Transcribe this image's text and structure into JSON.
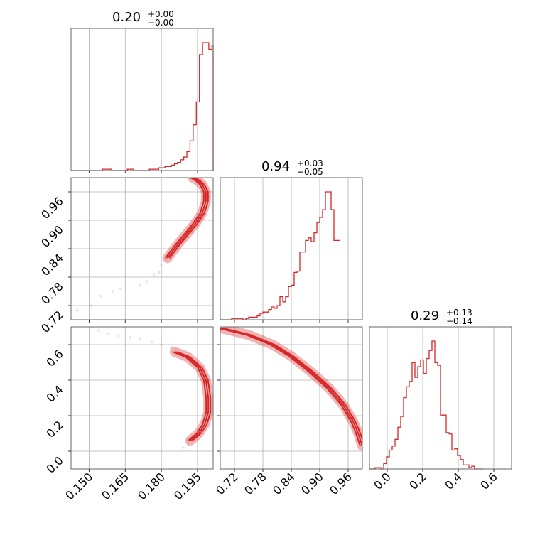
{
  "chart_data": {
    "type": "corner",
    "params": [
      {
        "title": {
          "median": "0.20",
          "plus": "+0.00",
          "minus": "−0.00"
        },
        "lim": [
          0.1425,
          0.2015
        ],
        "ticks": [
          "0.150",
          "0.165",
          "0.180",
          "0.195"
        ],
        "hist": {
          "edges_start": 0.1425,
          "bin_width": 0.0013,
          "counts": [
            0,
            0,
            0,
            0,
            0,
            0,
            0,
            0,
            0,
            0,
            1,
            1,
            1,
            0,
            0,
            0,
            0,
            0,
            1,
            1,
            0,
            0,
            0,
            0,
            0,
            1,
            1,
            1,
            2,
            2,
            3,
            3,
            4,
            5,
            6,
            8,
            10,
            14,
            22,
            34,
            51,
            86,
            95,
            95,
            90,
            93,
            78,
            20,
            0,
            0
          ]
        }
      },
      {
        "title": {
          "median": "0.94",
          "plus": "+0.03",
          "minus": "−0.05"
        },
        "lim": [
          0.69,
          0.99
        ],
        "ticks": [
          "0.72",
          "0.78",
          "0.84",
          "0.90",
          "0.96"
        ],
        "hist": {
          "edges_start": 0.69,
          "bin_width": 0.006,
          "counts": [
            0,
            0,
            0,
            0,
            1,
            1,
            1,
            1,
            0,
            1,
            2,
            2,
            2,
            3,
            5,
            6,
            6,
            8,
            10,
            9,
            11,
            18,
            14,
            18,
            26,
            27,
            37,
            38,
            53,
            53,
            62,
            64,
            61,
            68,
            76,
            80,
            86,
            100,
            100,
            86,
            62,
            62
          ]
        }
      },
      {
        "title": {
          "median": "0.29",
          "plus": "+0.13",
          "minus": "−0.14"
        },
        "lim": [
          -0.1,
          0.7
        ],
        "ticks": [
          "0.0",
          "0.2",
          "0.4",
          "0.6"
        ],
        "hist": {
          "edges_start": -0.1,
          "bin_width": 0.016,
          "counts": [
            0,
            0,
            1,
            1,
            0,
            4,
            9,
            14,
            17,
            22,
            31,
            39,
            53,
            61,
            65,
            79,
            68,
            76,
            81,
            71,
            82,
            88,
            95,
            79,
            77,
            40,
            40,
            27,
            26,
            14,
            15,
            10,
            7,
            3,
            3,
            1,
            2,
            0,
            0,
            0
          ]
        }
      }
    ],
    "pairs": [
      {
        "x_param": 0,
        "y_param": 1,
        "samples": [
          [
            0.145,
            0.71
          ],
          [
            0.151,
            0.72
          ],
          [
            0.155,
            0.74
          ],
          [
            0.16,
            0.75
          ],
          [
            0.163,
            0.755
          ],
          [
            0.171,
            0.763
          ],
          [
            0.174,
            0.771
          ],
          [
            0.177,
            0.786
          ],
          [
            0.179,
            0.79
          ],
          [
            0.18,
            0.804
          ],
          [
            0.182,
            0.818
          ],
          [
            0.183,
            0.825
          ],
          [
            0.184,
            0.83
          ],
          [
            0.185,
            0.838
          ],
          [
            0.186,
            0.842
          ],
          [
            0.187,
            0.847
          ],
          [
            0.188,
            0.852
          ],
          [
            0.189,
            0.856
          ],
          [
            0.19,
            0.862
          ],
          [
            0.192,
            0.873
          ],
          [
            0.193,
            0.874
          ],
          [
            0.194,
            0.885
          ],
          [
            0.195,
            0.888
          ],
          [
            0.196,
            0.897
          ],
          [
            0.197,
            0.905
          ],
          [
            0.198,
            0.915
          ],
          [
            0.199,
            0.93
          ],
          [
            0.2,
            0.95
          ],
          [
            0.199,
            0.967
          ],
          [
            0.197,
            0.978
          ],
          [
            0.196,
            0.985
          ],
          [
            0.194,
            0.989
          ],
          [
            0.192,
            0.99
          ],
          [
            0.19,
            0.99
          ]
        ],
        "curve": [
          [
            0.1825,
            0.82
          ],
          [
            0.187,
            0.85
          ],
          [
            0.191,
            0.874
          ],
          [
            0.194,
            0.893
          ],
          [
            0.197,
            0.915
          ],
          [
            0.1985,
            0.94
          ],
          [
            0.1985,
            0.96
          ],
          [
            0.197,
            0.975
          ],
          [
            0.195,
            0.984
          ],
          [
            0.193,
            0.99
          ]
        ]
      },
      {
        "x_param": 0,
        "y_param": 2,
        "samples": [
          [
            0.151,
            0.7
          ],
          [
            0.154,
            0.68
          ],
          [
            0.158,
            0.66
          ],
          [
            0.162,
            0.65
          ],
          [
            0.167,
            0.64
          ],
          [
            0.171,
            0.63
          ],
          [
            0.176,
            0.615
          ],
          [
            0.18,
            0.6
          ],
          [
            0.184,
            0.585
          ],
          [
            0.186,
            0.57
          ],
          [
            0.188,
            0.555
          ],
          [
            0.19,
            0.54
          ],
          [
            0.192,
            0.52
          ],
          [
            0.194,
            0.5
          ],
          [
            0.196,
            0.47
          ],
          [
            0.197,
            0.44
          ],
          [
            0.198,
            0.41
          ],
          [
            0.199,
            0.38
          ],
          [
            0.2,
            0.34
          ],
          [
            0.2,
            0.3
          ],
          [
            0.2,
            0.26
          ],
          [
            0.199,
            0.22
          ],
          [
            0.199,
            0.18
          ],
          [
            0.198,
            0.15
          ],
          [
            0.196,
            0.12
          ],
          [
            0.195,
            0.09
          ],
          [
            0.193,
            0.06
          ],
          [
            0.191,
            0.04
          ],
          [
            0.189,
            0.02
          ]
        ],
        "curve": [
          [
            0.1855,
            0.56
          ],
          [
            0.191,
            0.53
          ],
          [
            0.196,
            0.47
          ],
          [
            0.1985,
            0.4
          ],
          [
            0.1995,
            0.3
          ],
          [
            0.1995,
            0.22
          ],
          [
            0.198,
            0.15
          ],
          [
            0.1955,
            0.1
          ],
          [
            0.192,
            0.06
          ]
        ]
      },
      {
        "x_param": 1,
        "y_param": 2,
        "samples": [
          [
            0.7,
            0.7
          ],
          [
            0.72,
            0.68
          ],
          [
            0.74,
            0.66
          ],
          [
            0.76,
            0.65
          ],
          [
            0.78,
            0.62
          ],
          [
            0.8,
            0.6
          ],
          [
            0.82,
            0.57
          ],
          [
            0.84,
            0.53
          ],
          [
            0.86,
            0.49
          ],
          [
            0.88,
            0.44
          ],
          [
            0.9,
            0.39
          ],
          [
            0.92,
            0.34
          ],
          [
            0.94,
            0.29
          ],
          [
            0.95,
            0.25
          ],
          [
            0.96,
            0.2
          ],
          [
            0.97,
            0.15
          ],
          [
            0.98,
            0.09
          ],
          [
            0.985,
            0.05
          ],
          [
            0.99,
            0.0
          ]
        ],
        "curve": [
          [
            0.695,
            0.69
          ],
          [
            0.75,
            0.655
          ],
          [
            0.8,
            0.6
          ],
          [
            0.84,
            0.535
          ],
          [
            0.88,
            0.45
          ],
          [
            0.92,
            0.355
          ],
          [
            0.95,
            0.26
          ],
          [
            0.97,
            0.17
          ],
          [
            0.98,
            0.11
          ],
          [
            0.99,
            0.03
          ]
        ]
      }
    ],
    "colors": {
      "series": "#d62728",
      "frame": "#666666",
      "grid": "#b0b0b0"
    },
    "grid": true
  }
}
